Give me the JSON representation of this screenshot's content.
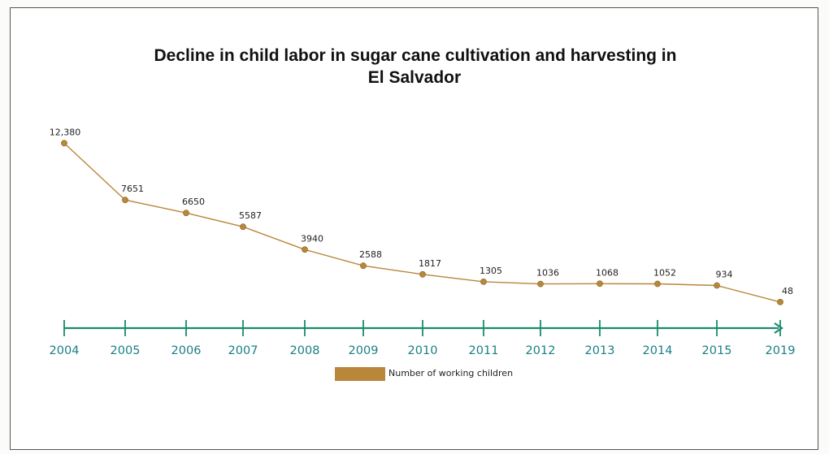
{
  "chart_data": {
    "type": "line",
    "title_line1": "Decline in child labor in sugar cane cultivation and harvesting in",
    "title_line2": "El Salvador",
    "categories": [
      "2004",
      "2005",
      "2006",
      "2007",
      "2008",
      "2009",
      "2010",
      "2011",
      "2012",
      "2013",
      "2014",
      "2015",
      "2019"
    ],
    "value_labels": [
      "12,380",
      "7651",
      "6650",
      "5587",
      "3940",
      "2588",
      "1817",
      "1305",
      "1036",
      "1068",
      "1052",
      "934",
      "48"
    ],
    "series": [
      {
        "name": "Number of working children",
        "values": [
          12380,
          7651,
          6650,
          5587,
          3940,
          2588,
          1817,
          1305,
          1036,
          1068,
          1052,
          934,
          48
        ]
      }
    ],
    "xlabel": "",
    "ylabel": "",
    "grid": false,
    "legend_position": "bottom-center",
    "colors": {
      "line": "#b8873a",
      "marker": "#b8873a",
      "axis": "#1a8a6e",
      "axis_labels": "#1a7f86"
    }
  }
}
